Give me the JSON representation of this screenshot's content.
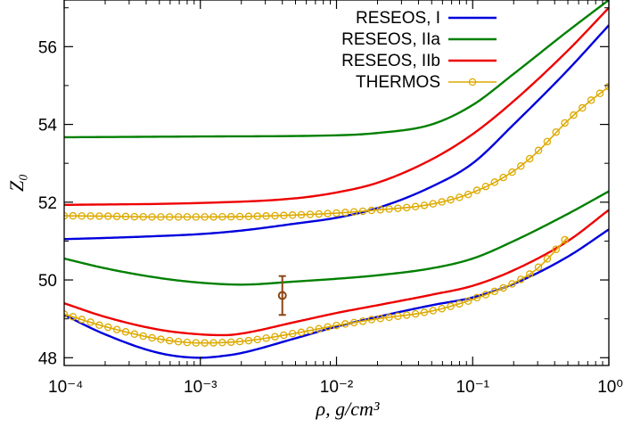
{
  "chart_data": {
    "type": "line",
    "xlabel": "ρ, g/cm³",
    "ylabel": "Z₀",
    "x_scale": "log",
    "xlim": [
      0.0001,
      1
    ],
    "ylim": [
      47.8,
      57.2
    ],
    "x_ticks": [
      "10⁻⁴",
      "10⁻³",
      "10⁻²",
      "10⁻¹",
      "10⁰"
    ],
    "x_tick_values": [
      0.0001,
      0.001,
      0.01,
      0.1,
      1
    ],
    "y_ticks": [
      "48",
      "50",
      "52",
      "54",
      "56"
    ],
    "y_tick_values": [
      48,
      50,
      52,
      54,
      56
    ],
    "grid": false,
    "legend_position": "top-right",
    "series": [
      {
        "name": "RESEOS, I",
        "color": "#0000dd",
        "marker": "none",
        "branches": [
          [
            [
              0.0001,
              51.05
            ],
            [
              0.0002,
              51.08
            ],
            [
              0.0005,
              51.13
            ],
            [
              0.001,
              51.18
            ],
            [
              0.002,
              51.27
            ],
            [
              0.005,
              51.45
            ],
            [
              0.01,
              51.6
            ],
            [
              0.02,
              51.85
            ],
            [
              0.05,
              52.4
            ],
            [
              0.1,
              53.0
            ],
            [
              0.2,
              54.0
            ],
            [
              0.5,
              55.4
            ],
            [
              1,
              56.55
            ]
          ],
          [
            [
              0.0001,
              49.1
            ],
            [
              0.0002,
              48.6
            ],
            [
              0.0005,
              48.12
            ],
            [
              0.001,
              48.0
            ],
            [
              0.0015,
              48.05
            ],
            [
              0.002,
              48.12
            ],
            [
              0.005,
              48.5
            ],
            [
              0.01,
              48.8
            ],
            [
              0.02,
              49.05
            ],
            [
              0.05,
              49.35
            ],
            [
              0.1,
              49.55
            ],
            [
              0.2,
              49.9
            ],
            [
              0.5,
              50.6
            ],
            [
              1,
              51.3
            ]
          ]
        ]
      },
      {
        "name": "RESEOS, IIa",
        "color": "#008000",
        "marker": "none",
        "branches": [
          [
            [
              0.0001,
              53.67
            ],
            [
              0.001,
              53.69
            ],
            [
              0.01,
              53.72
            ],
            [
              0.02,
              53.78
            ],
            [
              0.05,
              54.0
            ],
            [
              0.1,
              54.5
            ],
            [
              0.2,
              55.3
            ],
            [
              0.5,
              56.4
            ],
            [
              1,
              57.2
            ]
          ],
          [
            [
              0.0001,
              50.55
            ],
            [
              0.0002,
              50.3
            ],
            [
              0.0005,
              50.05
            ],
            [
              0.001,
              49.93
            ],
            [
              0.002,
              49.88
            ],
            [
              0.005,
              49.96
            ],
            [
              0.01,
              50.03
            ],
            [
              0.02,
              50.12
            ],
            [
              0.05,
              50.3
            ],
            [
              0.1,
              50.55
            ],
            [
              0.2,
              51.0
            ],
            [
              0.5,
              51.7
            ],
            [
              1,
              52.28
            ]
          ]
        ]
      },
      {
        "name": "RESEOS, IIb",
        "color": "#ee0000",
        "marker": "none",
        "branches": [
          [
            [
              0.0001,
              51.93
            ],
            [
              0.001,
              51.98
            ],
            [
              0.005,
              52.1
            ],
            [
              0.01,
              52.25
            ],
            [
              0.02,
              52.5
            ],
            [
              0.05,
              53.1
            ],
            [
              0.1,
              53.75
            ],
            [
              0.2,
              54.6
            ],
            [
              0.5,
              55.9
            ],
            [
              1,
              57.0
            ]
          ],
          [
            [
              0.0001,
              49.4
            ],
            [
              0.0002,
              49.05
            ],
            [
              0.0005,
              48.72
            ],
            [
              0.001,
              48.6
            ],
            [
              0.0015,
              48.58
            ],
            [
              0.002,
              48.62
            ],
            [
              0.005,
              48.92
            ],
            [
              0.01,
              49.15
            ],
            [
              0.02,
              49.35
            ],
            [
              0.05,
              49.62
            ],
            [
              0.1,
              49.85
            ],
            [
              0.2,
              50.25
            ],
            [
              0.5,
              51.0
            ],
            [
              1,
              51.8
            ]
          ]
        ]
      },
      {
        "name": "THERMOS",
        "color": "#ddaa00",
        "marker": "circle",
        "branches": [
          [
            [
              0.0001,
              51.65
            ],
            [
              0.0002,
              51.64
            ],
            [
              0.0005,
              51.62
            ],
            [
              0.001,
              51.62
            ],
            [
              0.002,
              51.63
            ],
            [
              0.005,
              51.67
            ],
            [
              0.01,
              51.72
            ],
            [
              0.02,
              51.8
            ],
            [
              0.05,
              51.95
            ],
            [
              0.1,
              52.25
            ],
            [
              0.2,
              52.8
            ],
            [
              0.3,
              53.3
            ],
            [
              0.5,
              54.1
            ],
            [
              0.7,
              54.55
            ],
            [
              1,
              54.97
            ]
          ],
          [
            [
              0.0001,
              49.12
            ],
            [
              0.0002,
              48.8
            ],
            [
              0.0005,
              48.48
            ],
            [
              0.001,
              48.38
            ],
            [
              0.002,
              48.42
            ],
            [
              0.005,
              48.63
            ],
            [
              0.01,
              48.83
            ],
            [
              0.02,
              49.0
            ],
            [
              0.05,
              49.2
            ],
            [
              0.1,
              49.5
            ],
            [
              0.2,
              49.92
            ],
            [
              0.3,
              50.3
            ],
            [
              0.5,
              51.1
            ]
          ]
        ]
      }
    ],
    "annotations": [
      {
        "type": "errorbar",
        "x": 0.004,
        "y": 49.6,
        "ylow": 49.1,
        "yhigh": 50.1,
        "color": "#8b4513"
      }
    ]
  }
}
